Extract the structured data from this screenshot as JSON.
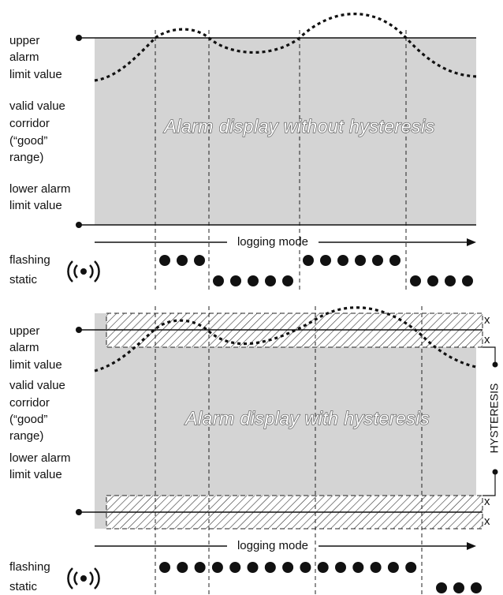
{
  "top_panel": {
    "upper_label": [
      "upper",
      "alarm",
      "limit value"
    ],
    "corridor_label": [
      "valid value",
      "corridor",
      "(“good”",
      "range)"
    ],
    "lower_label": [
      "lower alarm",
      "limit value"
    ],
    "title": "Alarm display without hysteresis",
    "logging_mode": "logging mode",
    "flashing": "flashing",
    "static": "static"
  },
  "bottom_panel": {
    "upper_label": [
      "upper",
      "alarm",
      "limit value"
    ],
    "corridor_label": [
      "valid value",
      "corridor",
      "(“good”",
      "range)"
    ],
    "lower_label": [
      "lower alarm",
      "limit value"
    ],
    "title": "Alarm display with hysteresis",
    "logging_mode": "logging mode",
    "flashing": "flashing",
    "static": "static",
    "hysteresis": "HYSTERESIS",
    "x_marks": [
      "x",
      "x",
      "x",
      "x"
    ]
  }
}
